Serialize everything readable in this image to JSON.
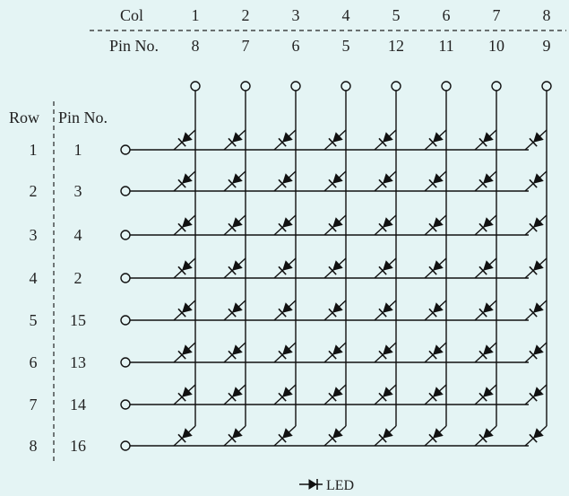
{
  "header": {
    "col_label": "Col",
    "pin_label": "Pin No."
  },
  "columns": [
    {
      "col": "1",
      "pin": "8"
    },
    {
      "col": "2",
      "pin": "7"
    },
    {
      "col": "3",
      "pin": "6"
    },
    {
      "col": "4",
      "pin": "5"
    },
    {
      "col": "5",
      "pin": "12"
    },
    {
      "col": "6",
      "pin": "11"
    },
    {
      "col": "7",
      "pin": "10"
    },
    {
      "col": "8",
      "pin": "9"
    }
  ],
  "row_header": {
    "row_label": "Row",
    "pin_label": "Pin No."
  },
  "rows": [
    {
      "row": "1",
      "pin": "1"
    },
    {
      "row": "2",
      "pin": "3"
    },
    {
      "row": "3",
      "pin": "4"
    },
    {
      "row": "4",
      "pin": "2"
    },
    {
      "row": "5",
      "pin": "15"
    },
    {
      "row": "6",
      "pin": "13"
    },
    {
      "row": "7",
      "pin": "14"
    },
    {
      "row": "8",
      "pin": "16"
    }
  ],
  "legend": {
    "label": "LED",
    "icon": "led-diode-icon"
  }
}
